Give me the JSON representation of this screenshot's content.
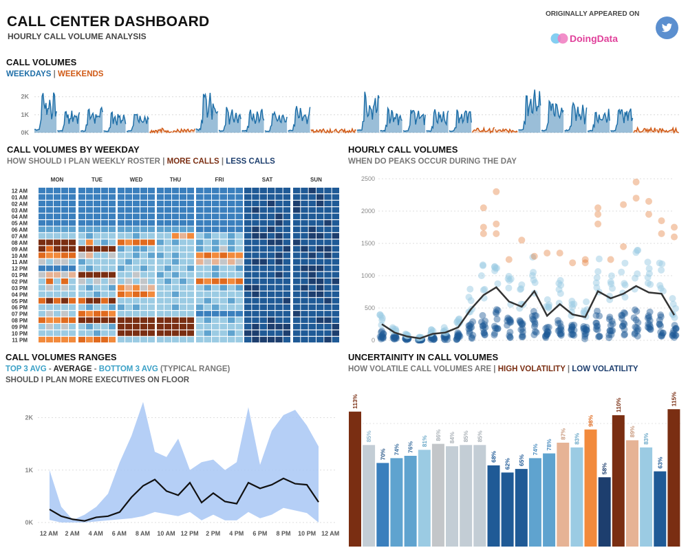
{
  "header": {
    "title": "CALL CENTER DASHBOARD",
    "subtitle": "HOURLY CALL VOLUME ANALYSIS",
    "appeared": "ORIGINALLY APPEARED ON",
    "brand": "DoingData",
    "twitter_icon": "twitter-icon",
    "colors": {
      "weekday": "#1f6fa8",
      "weekend": "#d05a16",
      "brand": "#e0409a"
    }
  },
  "s1": {
    "title": "CALL VOLUMES",
    "weekdays": "WEEKDAYS",
    "sep": "|",
    "weekends": "WEEKENDS"
  },
  "s2": {
    "title": "CALL VOLUMES BY WEEKDAY",
    "q": "HOW SHOULD I PLAN WEEKLY ROSTER",
    "sep": "|",
    "more": "MORE CALLS",
    "less": "LESS CALLS"
  },
  "s3": {
    "title": "HOURLY CALL VOLUMES",
    "q": "WHEN DO PEAKS OCCUR DURING THE DAY"
  },
  "s4": {
    "title": "CALL VOLUMES RANGES",
    "top": "TOP 3 AVG",
    "dash1": "-",
    "avg": "AVERAGE",
    "dash2": "-",
    "bot": "BOTTOM 3 AVG",
    "typ": "(TYPICAL RANGE)",
    "q": "SHOULD I PLAN MORE EXECUTIVES ON FLOOR"
  },
  "s5": {
    "title": "UNCERTAINITY IN CALL VOLUMES",
    "q": "HOW VOLATILE CALL VOLUMES ARE",
    "sep": "|",
    "high": "HIGH VOLATILITY",
    "sep2": "|",
    "low": "LOW VOLATILITY"
  },
  "chart_data": [
    {
      "type": "area",
      "name": "call-volumes-timeline",
      "y_ticks": [
        "0K",
        "1K",
        "2K"
      ],
      "ylim": [
        0,
        2600
      ],
      "days": [
        "Mon",
        "Tue",
        "Wed",
        "Thu",
        "Fri",
        "Sat",
        "Sun",
        "Mon",
        "Tue",
        "Wed",
        "Thu",
        "Fri",
        "Sat",
        "Sun",
        "Mon",
        "Tue",
        "Wed",
        "Thu",
        "Fri",
        "Sat",
        "Sun",
        "Mon",
        "Tue",
        "Wed",
        "Thu",
        "Fri",
        "Sat",
        "Sun"
      ],
      "day_peaks": [
        2300,
        1350,
        1450,
        1150,
        1250,
        300,
        220,
        2250,
        1450,
        1350,
        1200,
        1500,
        310,
        230,
        2300,
        1400,
        1350,
        1300,
        1400,
        320,
        260,
        2450,
        1800,
        1700,
        1350,
        1450,
        330,
        280
      ],
      "series_colors": {
        "weekday": "#1f6fa8",
        "weekend": "#d05a16"
      }
    },
    {
      "type": "heatmap",
      "name": "call-volumes-by-weekday",
      "columns": [
        "MON",
        "TUE",
        "WED",
        "THU",
        "FRI",
        "SAT",
        "SUN"
      ],
      "rows": [
        "12 AM",
        "01 AM",
        "02 AM",
        "03 AM",
        "04 AM",
        "05 AM",
        "06 AM",
        "07 AM",
        "08 AM",
        "09 AM",
        "10 AM",
        "11 AM",
        "12 PM",
        "01 PM",
        "02 PM",
        "03 PM",
        "04 PM",
        "05 PM",
        "06 PM",
        "07 PM",
        "08 PM",
        "09 PM",
        "10 PM",
        "11 PM"
      ],
      "scale": [
        "#1d3e6e",
        "#1f5a96",
        "#3a7fbd",
        "#5fa3cf",
        "#9bcbe3",
        "#c3c6c9",
        "#e6b395",
        "#f28a3c",
        "#e06a1e",
        "#7a2e12"
      ],
      "weekday_levels": [
        [
          2,
          2,
          2,
          2,
          2,
          2,
          2,
          2,
          2,
          2,
          2,
          2,
          2,
          2,
          2,
          2,
          2,
          2,
          2,
          2,
          2,
          2,
          2,
          2,
          2,
          2,
          2,
          2,
          2,
          2
        ],
        [
          2,
          2,
          2,
          2,
          2,
          2,
          2,
          2,
          2,
          2,
          2,
          2,
          2,
          2,
          2,
          2,
          2,
          2,
          2,
          2,
          2,
          2,
          2,
          2,
          2,
          2,
          2,
          2,
          2,
          2
        ],
        [
          2,
          2,
          2,
          2,
          2,
          2,
          2,
          2,
          2,
          2,
          2,
          2,
          2,
          2,
          2,
          2,
          2,
          2,
          2,
          2,
          2,
          2,
          2,
          2,
          2,
          2,
          2,
          2,
          2,
          2
        ],
        [
          2,
          2,
          2,
          2,
          2,
          2,
          2,
          2,
          2,
          2,
          2,
          2,
          2,
          2,
          2,
          2,
          2,
          2,
          2,
          2,
          2,
          2,
          2,
          2,
          2,
          2,
          2,
          2,
          2,
          2
        ],
        [
          2,
          2,
          2,
          2,
          2,
          2,
          2,
          2,
          2,
          2,
          2,
          2,
          2,
          2,
          2,
          2,
          2,
          2,
          2,
          2,
          2,
          2,
          2,
          2,
          2,
          2,
          2,
          2,
          2,
          2
        ],
        [
          2,
          2,
          2,
          2,
          2,
          2,
          2,
          2,
          2,
          2,
          2,
          2,
          2,
          2,
          2,
          2,
          2,
          2,
          2,
          2,
          2,
          2,
          2,
          2,
          2,
          2,
          2,
          2,
          2,
          2
        ],
        [
          3,
          3,
          3,
          3,
          3,
          3,
          3,
          3,
          3,
          3,
          3,
          3,
          3,
          3,
          3,
          3,
          3,
          3,
          3,
          3,
          3,
          3,
          3,
          3,
          2,
          2,
          2,
          2,
          2,
          2
        ],
        [
          4,
          4,
          4,
          4,
          4,
          4,
          4,
          3,
          4,
          4,
          4,
          4,
          4,
          4,
          3,
          4,
          4,
          3,
          4,
          4,
          7,
          6,
          7,
          4,
          4,
          3,
          4,
          4,
          3,
          4
        ],
        [
          9,
          9,
          9,
          9,
          9,
          9,
          4,
          7,
          4,
          3,
          4,
          4,
          8,
          7,
          8,
          8,
          8,
          7,
          3,
          4,
          3,
          4,
          4,
          4,
          3,
          4,
          3,
          4,
          3,
          4
        ],
        [
          9,
          8,
          9,
          9,
          9,
          9,
          9,
          9,
          9,
          9,
          9,
          9,
          3,
          4,
          3,
          3,
          4,
          4,
          4,
          4,
          4,
          4,
          4,
          4,
          3,
          4,
          3,
          5,
          3,
          4
        ],
        [
          8,
          7,
          7,
          8,
          8,
          7,
          5,
          6,
          4,
          4,
          5,
          4,
          4,
          4,
          3,
          4,
          3,
          4,
          3,
          4,
          3,
          4,
          4,
          4,
          7,
          8,
          7,
          8,
          7,
          7
        ],
        [
          5,
          4,
          5,
          5,
          4,
          4,
          3,
          4,
          4,
          4,
          4,
          3,
          4,
          3,
          4,
          4,
          4,
          4,
          4,
          4,
          3,
          4,
          4,
          4,
          6,
          5,
          6,
          5,
          6,
          5
        ],
        [
          2,
          2,
          2,
          2,
          2,
          2,
          4,
          3,
          4,
          4,
          4,
          4,
          3,
          4,
          4,
          3,
          4,
          3,
          4,
          3,
          4,
          4,
          3,
          4,
          4,
          4,
          3,
          4,
          4,
          3
        ],
        [
          5,
          6,
          6,
          5,
          6,
          6,
          9,
          9,
          9,
          9,
          9,
          9,
          4,
          4,
          5,
          4,
          4,
          5,
          3,
          4,
          3,
          4,
          4,
          4,
          4,
          4,
          3,
          4,
          4,
          4
        ],
        [
          4,
          8,
          4,
          8,
          4,
          4,
          5,
          4,
          5,
          4,
          5,
          4,
          4,
          5,
          4,
          5,
          4,
          4,
          4,
          3,
          4,
          3,
          4,
          4,
          8,
          7,
          8,
          8,
          7,
          8
        ],
        [
          4,
          5,
          4,
          5,
          4,
          4,
          4,
          3,
          4,
          4,
          3,
          4,
          7,
          6,
          7,
          5,
          6,
          5,
          4,
          4,
          4,
          4,
          4,
          4,
          4,
          3,
          4,
          3,
          4,
          3
        ],
        [
          4,
          4,
          4,
          4,
          4,
          4,
          4,
          4,
          3,
          4,
          4,
          3,
          8,
          7,
          8,
          8,
          7,
          8,
          4,
          4,
          3,
          4,
          4,
          4,
          4,
          4,
          4,
          4,
          4,
          4
        ],
        [
          8,
          9,
          8,
          9,
          8,
          9,
          8,
          9,
          9,
          8,
          9,
          8,
          4,
          4,
          4,
          4,
          4,
          4,
          4,
          4,
          4,
          4,
          4,
          4,
          4,
          3,
          4,
          4,
          3,
          4
        ],
        [
          4,
          4,
          4,
          4,
          4,
          4,
          4,
          3,
          4,
          4,
          3,
          4,
          3,
          4,
          3,
          4,
          4,
          3,
          4,
          4,
          3,
          4,
          4,
          4,
          3,
          4,
          3,
          4,
          4,
          4
        ],
        [
          4,
          5,
          4,
          5,
          4,
          4,
          8,
          7,
          8,
          8,
          7,
          8,
          4,
          4,
          4,
          4,
          4,
          4,
          4,
          4,
          4,
          4,
          4,
          4,
          2,
          2,
          2,
          2,
          2,
          2
        ],
        [
          8,
          7,
          7,
          8,
          8,
          7,
          9,
          9,
          9,
          9,
          9,
          9,
          9,
          9,
          9,
          9,
          9,
          9,
          9,
          9,
          9,
          9,
          9,
          9,
          4,
          3,
          4,
          4,
          3,
          4
        ],
        [
          4,
          5,
          4,
          5,
          4,
          4,
          4,
          3,
          4,
          4,
          3,
          4,
          9,
          9,
          9,
          9,
          9,
          9,
          9,
          9,
          9,
          9,
          9,
          9,
          4,
          4,
          4,
          4,
          4,
          4
        ],
        [
          4,
          4,
          4,
          4,
          4,
          4,
          4,
          4,
          3,
          4,
          4,
          3,
          9,
          9,
          9,
          9,
          9,
          9,
          9,
          9,
          9,
          9,
          9,
          9,
          4,
          3,
          4,
          4,
          3,
          4
        ],
        [
          7,
          7,
          7,
          7,
          7,
          7,
          8,
          7,
          8,
          8,
          7,
          8,
          4,
          4,
          4,
          4,
          4,
          4,
          4,
          4,
          4,
          4,
          4,
          4,
          4,
          4,
          4,
          4,
          4,
          4
        ]
      ],
      "weekend_level": 1
    },
    {
      "type": "scatter",
      "name": "hourly-call-volumes",
      "y_ticks": [
        "0",
        "500",
        "1000",
        "1500",
        "2000",
        "2500"
      ],
      "ylim": [
        0,
        2500
      ],
      "hours": 24,
      "avg_line": [
        250,
        120,
        60,
        30,
        100,
        120,
        200,
        480,
        700,
        820,
        600,
        520,
        760,
        380,
        560,
        400,
        360,
        760,
        650,
        720,
        840,
        740,
        720,
        390
      ],
      "high_points": [
        [
          8,
          1750
        ],
        [
          8,
          1650
        ],
        [
          8,
          2050
        ],
        [
          9,
          2300
        ],
        [
          9,
          1800
        ],
        [
          9,
          1650
        ],
        [
          10,
          1250
        ],
        [
          11,
          1550
        ],
        [
          12,
          1300
        ],
        [
          13,
          1350
        ],
        [
          14,
          1350
        ],
        [
          15,
          1200
        ],
        [
          16,
          1250
        ],
        [
          16,
          1200
        ],
        [
          17,
          2050
        ],
        [
          17,
          1950
        ],
        [
          17,
          1800
        ],
        [
          18,
          1250
        ],
        [
          19,
          2100
        ],
        [
          19,
          1450
        ],
        [
          20,
          2450
        ],
        [
          20,
          2200
        ],
        [
          21,
          2150
        ],
        [
          21,
          1950
        ],
        [
          22,
          1850
        ],
        [
          22,
          1650
        ],
        [
          23,
          1750
        ],
        [
          23,
          1600
        ]
      ],
      "colors": {
        "low": "#1f5a96",
        "mid": "#9bcbe3",
        "high": "#e06a1e",
        "line": "#333333"
      }
    },
    {
      "type": "area",
      "name": "call-volumes-ranges",
      "y_ticks": [
        "0K",
        "1K",
        "2K"
      ],
      "ylim": [
        0,
        2400
      ],
      "x_labels": [
        "12 AM",
        "2 AM",
        "4 AM",
        "6 AM",
        "8 AM",
        "10 AM",
        "12 PM",
        "2 PM",
        "4 PM",
        "6 PM",
        "8 PM",
        "10 PM",
        "12 AM"
      ],
      "top": [
        1000,
        300,
        50,
        150,
        300,
        550,
        1150,
        1650,
        2300,
        1350,
        1250,
        1600,
        1000,
        1150,
        1200,
        1000,
        1150,
        2200,
        1100,
        1750,
        2050,
        2150,
        1850,
        1450
      ],
      "avg": [
        250,
        120,
        60,
        30,
        100,
        120,
        200,
        480,
        700,
        820,
        600,
        520,
        760,
        380,
        560,
        400,
        360,
        760,
        650,
        720,
        840,
        740,
        720,
        390
      ],
      "bottom": [
        50,
        0,
        0,
        0,
        20,
        40,
        60,
        80,
        120,
        200,
        160,
        120,
        200,
        40,
        150,
        40,
        40,
        200,
        80,
        150,
        280,
        230,
        180,
        0
      ],
      "colors": {
        "band": "#a8c7f5",
        "line": "#111111"
      }
    },
    {
      "type": "bar",
      "name": "uncertainity-in-call-volumes",
      "categories": [
        "12 AM",
        "1 AM",
        "2 AM",
        "3 AM",
        "4 AM",
        "5 AM",
        "6 AM",
        "7 AM",
        "8 AM",
        "9 AM",
        "10 AM",
        "11 AM",
        "12 PM",
        "1 PM",
        "2 PM",
        "3 PM",
        "4 PM",
        "5 PM",
        "6 PM",
        "7 PM",
        "8 PM",
        "9 PM",
        "10 PM",
        "11 PM"
      ],
      "values": [
        113,
        85,
        70,
        74,
        76,
        81,
        86,
        84,
        85,
        85,
        68,
        62,
        65,
        74,
        78,
        87,
        83,
        98,
        58,
        110,
        89,
        83,
        63,
        115
      ],
      "labels": [
        "113%",
        "85%",
        "70%",
        "74%",
        "76%",
        "81%",
        "86%",
        "84%",
        "85%",
        "85%",
        "68%",
        "62%",
        "65%",
        "74%",
        "78%",
        "87%",
        "83%",
        "98%",
        "58%",
        "110%",
        "89%",
        "83%",
        "63%",
        "115%"
      ],
      "ylim": [
        0,
        118
      ]
    }
  ]
}
